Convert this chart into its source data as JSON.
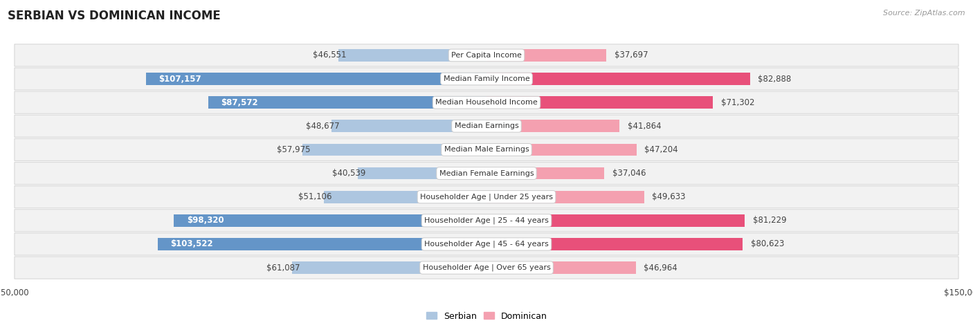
{
  "title": "SERBIAN VS DOMINICAN INCOME",
  "source": "Source: ZipAtlas.com",
  "categories": [
    "Per Capita Income",
    "Median Family Income",
    "Median Household Income",
    "Median Earnings",
    "Median Male Earnings",
    "Median Female Earnings",
    "Householder Age | Under 25 years",
    "Householder Age | 25 - 44 years",
    "Householder Age | 45 - 64 years",
    "Householder Age | Over 65 years"
  ],
  "serbian_values": [
    46551,
    107157,
    87572,
    48677,
    57975,
    40539,
    51106,
    98320,
    103522,
    61087
  ],
  "dominican_values": [
    37697,
    82888,
    71302,
    41864,
    47204,
    37046,
    49633,
    81229,
    80623,
    46964
  ],
  "serbian_labels": [
    "$46,551",
    "$107,157",
    "$87,572",
    "$48,677",
    "$57,975",
    "$40,539",
    "$51,106",
    "$98,320",
    "$103,522",
    "$61,087"
  ],
  "dominican_labels": [
    "$37,697",
    "$82,888",
    "$71,302",
    "$41,864",
    "$47,204",
    "$37,046",
    "$49,633",
    "$81,229",
    "$80,623",
    "$46,964"
  ],
  "serbian_color_light": "#adc6e0",
  "serbian_color_dark": "#6495c8",
  "dominican_color_light": "#f4a0b0",
  "dominican_color_dark": "#e8507a",
  "serbian_inside_threshold": 75000,
  "dominican_inside_threshold": 999999,
  "max_value": 150000,
  "bar_height": 0.52,
  "row_bg_color": "#f2f2f2",
  "row_border_color": "#d8d8d8",
  "title_fontsize": 12,
  "value_fontsize_inside": 8.5,
  "value_fontsize_outside": 8.5,
  "cat_fontsize": 8,
  "legend_fontsize": 9,
  "source_fontsize": 8,
  "axis_label_fontsize": 8.5
}
